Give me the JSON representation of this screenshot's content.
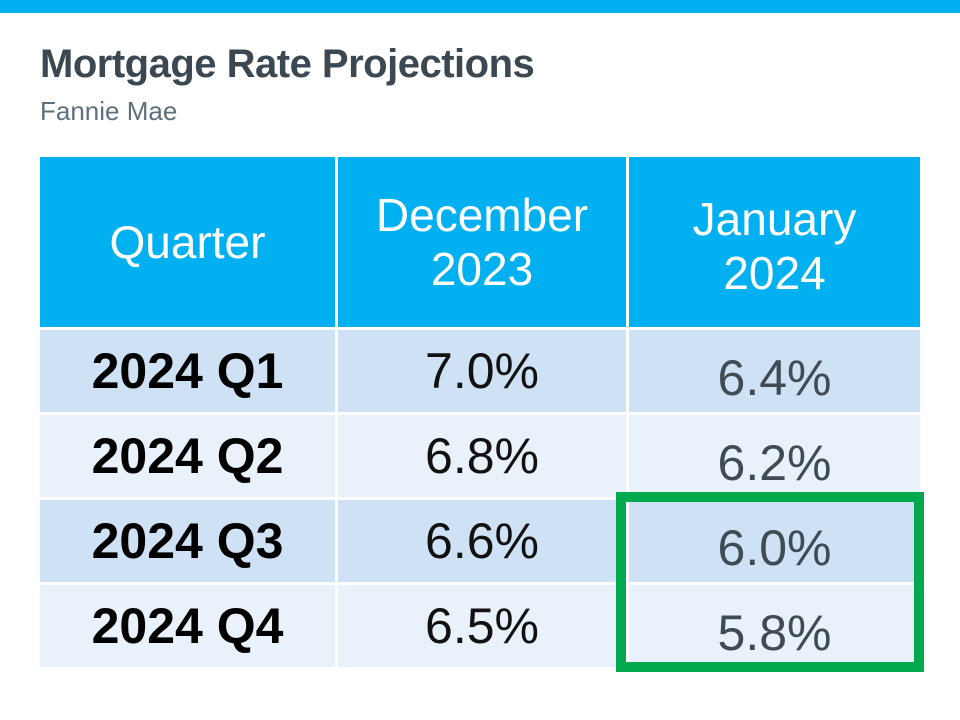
{
  "page": {
    "title": "Mortgage Rate Projections",
    "subtitle": "Fannie Mae"
  },
  "colors": {
    "accent_blue": "#00b0f0",
    "row_dark_blue": "#cfe1f4",
    "row_light_blue": "#e9f1fa",
    "highlight_green": "#00a94e",
    "title_text": "#3b4751",
    "subtitle_text": "#5e707c",
    "january_value_text": "#3f4b55"
  },
  "chart_data": {
    "type": "table",
    "title": "Mortgage Rate Projections",
    "subtitle": "Fannie Mae",
    "columns": [
      "Quarter",
      "December 2023",
      "January 2024"
    ],
    "rows": [
      [
        "2024 Q1",
        "7.0%",
        "6.4%"
      ],
      [
        "2024 Q2",
        "6.8%",
        "6.2%"
      ],
      [
        "2024 Q3",
        "6.6%",
        "6.0%"
      ],
      [
        "2024 Q4",
        "6.5%",
        "5.8%"
      ]
    ],
    "annotations": [
      {
        "shape": "green-rectangle",
        "meaning": "highlights January 2024 projections for 2024 Q3 and 2024 Q4",
        "highlighted_values": [
          "6.0%",
          "5.8%"
        ]
      }
    ],
    "layout": {
      "header_background": "#00b0f0",
      "alternating_row_colors": [
        "#cfe1f4",
        "#e9f1fa"
      ]
    }
  },
  "table": {
    "headers": [
      {
        "line1": "Quarter",
        "line2": ""
      },
      {
        "line1": "December",
        "line2": "2023"
      },
      {
        "line1": "January",
        "line2": "2024"
      }
    ],
    "rows": [
      {
        "quarter": "2024 Q1",
        "dec": "7.0%",
        "jan": "6.4%"
      },
      {
        "quarter": "2024 Q2",
        "dec": "6.8%",
        "jan": "6.2%"
      },
      {
        "quarter": "2024 Q3",
        "dec": "6.6%",
        "jan": "6.0%"
      },
      {
        "quarter": "2024 Q4",
        "dec": "6.5%",
        "jan": "5.8%"
      }
    ]
  }
}
